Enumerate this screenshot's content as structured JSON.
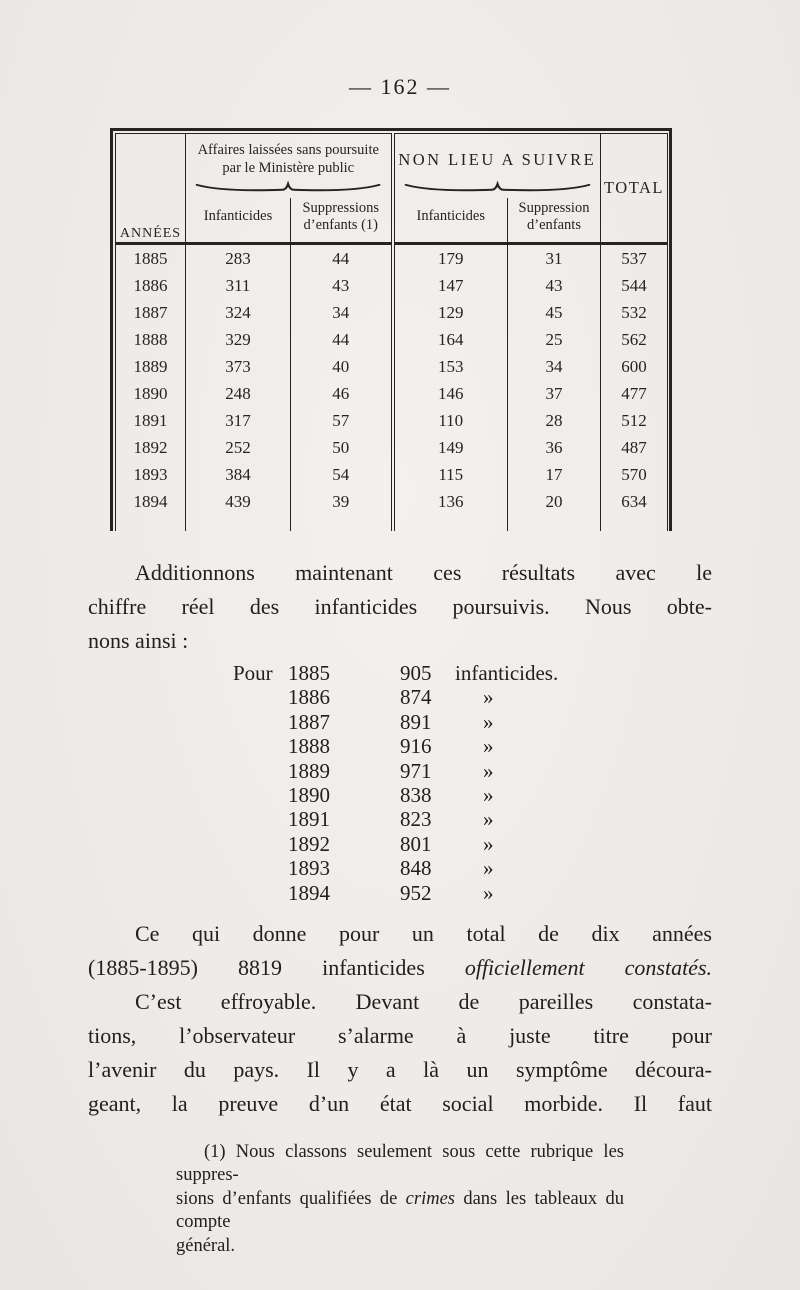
{
  "colors": {
    "paper": "#edecea",
    "ink": "#262421"
  },
  "page": {
    "number_display": "— 162 —"
  },
  "table": {
    "col_annees": "ANNÉES",
    "col_total": "TOTAL",
    "group1": {
      "title_line1": "Affaires laissées sans poursuite",
      "title_line2": "par le Ministère public",
      "sub1": "Infanticides",
      "sub2_line1": "Suppressions",
      "sub2_line2": "d’enfants (1)"
    },
    "group2": {
      "title": "NON LIEU A SUIVRE",
      "sub1": "Infanticides",
      "sub2_line1": "Suppression",
      "sub2_line2": "d’enfants"
    },
    "rows": [
      {
        "annee": "1885",
        "inf1": "283",
        "sup1": "44",
        "inf2": "179",
        "sup2": "31",
        "total": "537"
      },
      {
        "annee": "1886",
        "inf1": "311",
        "sup1": "43",
        "inf2": "147",
        "sup2": "43",
        "total": "544"
      },
      {
        "annee": "1887",
        "inf1": "324",
        "sup1": "34",
        "inf2": "129",
        "sup2": "45",
        "total": "532"
      },
      {
        "annee": "1888",
        "inf1": "329",
        "sup1": "44",
        "inf2": "164",
        "sup2": "25",
        "total": "562"
      },
      {
        "annee": "1889",
        "inf1": "373",
        "sup1": "40",
        "inf2": "153",
        "sup2": "34",
        "total": "600"
      },
      {
        "annee": "1890",
        "inf1": "248",
        "sup1": "46",
        "inf2": "146",
        "sup2": "37",
        "total": "477"
      },
      {
        "annee": "1891",
        "inf1": "317",
        "sup1": "57",
        "inf2": "110",
        "sup2": "28",
        "total": "512"
      },
      {
        "annee": "1892",
        "inf1": "252",
        "sup1": "50",
        "inf2": "149",
        "sup2": "36",
        "total": "487"
      },
      {
        "annee": "1893",
        "inf1": "384",
        "sup1": "54",
        "inf2": "115",
        "sup2": "17",
        "total": "570"
      },
      {
        "annee": "1894",
        "inf1": "439",
        "sup1": "39",
        "inf2": "136",
        "sup2": "20",
        "total": "634"
      }
    ]
  },
  "list": {
    "prefix": "Pour",
    "first_suffix": "infanticides.",
    "ditto": "»",
    "items": [
      {
        "year": "1885",
        "value": "905"
      },
      {
        "year": "1886",
        "value": "874"
      },
      {
        "year": "1887",
        "value": "891"
      },
      {
        "year": "1888",
        "value": "916"
      },
      {
        "year": "1889",
        "value": "971"
      },
      {
        "year": "1890",
        "value": "838"
      },
      {
        "year": "1891",
        "value": "823"
      },
      {
        "year": "1892",
        "value": "801"
      },
      {
        "year": "1893",
        "value": "848"
      },
      {
        "year": "1894",
        "value": "952"
      }
    ]
  },
  "paragraphs": {
    "p1": {
      "lines": [
        {
          "first": true,
          "just": true,
          "segs": [
            {
              "t": "Additionnons maintenant ces résultats avec le"
            }
          ]
        },
        {
          "just": true,
          "segs": [
            {
              "t": "chiffre réel des infanticides poursuivis. Nous obte-"
            }
          ]
        },
        {
          "just": false,
          "segs": [
            {
              "t": "nons ainsi :"
            }
          ]
        }
      ]
    },
    "p2": {
      "lines": [
        {
          "first": true,
          "just": true,
          "segs": [
            {
              "t": "Ce qui donne pour un total de dix années"
            }
          ]
        },
        {
          "just": true,
          "segs": [
            {
              "t": "(1885-1895) 8819 infanticides "
            },
            {
              "t": "officiellement constatés.",
              "it": true
            }
          ]
        }
      ]
    },
    "p3": {
      "lines": [
        {
          "first": true,
          "just": true,
          "segs": [
            {
              "t": "C’est effroyable. Devant de pareilles constata-"
            }
          ]
        },
        {
          "just": true,
          "segs": [
            {
              "t": "tions, l’observateur s’alarme à juste titre pour"
            }
          ]
        },
        {
          "just": true,
          "segs": [
            {
              "t": "l’avenir du pays. Il y a là un symptôme découra-"
            }
          ]
        },
        {
          "just": true,
          "segs": [
            {
              "t": "geant, la preuve d’un état social morbide. Il faut"
            }
          ]
        }
      ]
    },
    "footnote": {
      "lines": [
        {
          "first": true,
          "just": true,
          "segs": [
            {
              "t": "(1) Nous classons seulement sous cette rubrique les suppres-"
            }
          ]
        },
        {
          "just": true,
          "segs": [
            {
              "t": "sions d’enfants qualifiées de "
            },
            {
              "t": "crimes",
              "it": true
            },
            {
              "t": " dans les tableaux du compte"
            }
          ]
        },
        {
          "just": false,
          "segs": [
            {
              "t": "général."
            }
          ]
        }
      ]
    }
  }
}
